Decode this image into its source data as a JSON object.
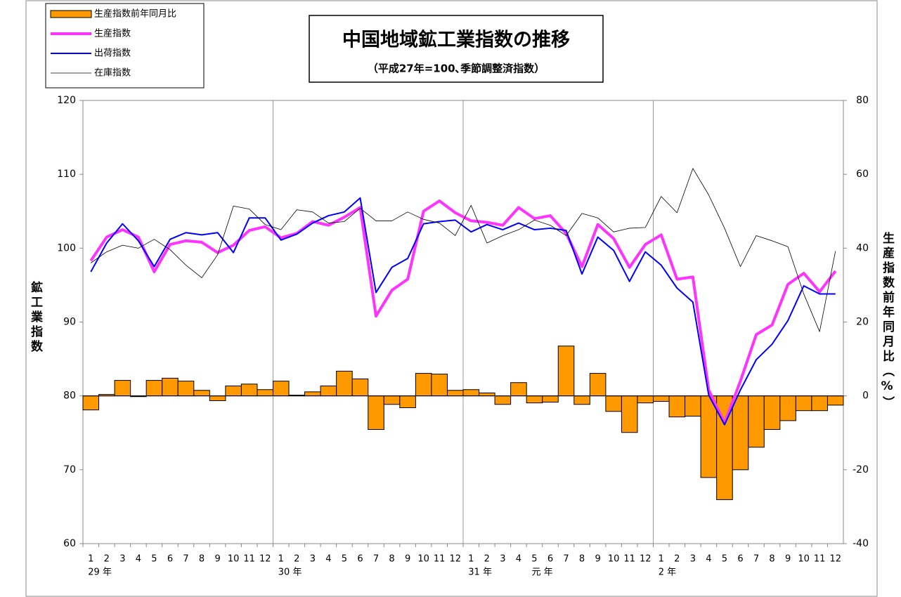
{
  "chart_data": {
    "type": "combo",
    "title": "中国地域鉱工業指数の推移",
    "subtitle": "（平成27年=100､季節調整済指数）",
    "y_label": "鉱工業指数",
    "y2_label": "生産指数前年同月比（%）",
    "categories": [
      "1",
      "2",
      "3",
      "4",
      "5",
      "6",
      "7",
      "8",
      "9",
      "10",
      "11",
      "12",
      "1",
      "2",
      "3",
      "4",
      "5",
      "6",
      "7",
      "8",
      "9",
      "10",
      "11",
      "12",
      "1",
      "2",
      "3",
      "4",
      "5",
      "6",
      "7",
      "8",
      "9",
      "10",
      "11",
      "12",
      "1",
      "2",
      "3",
      "4",
      "5",
      "6",
      "7",
      "8",
      "9",
      "10",
      "11",
      "12"
    ],
    "year_labels": [
      "29 年",
      null,
      null,
      null,
      null,
      null,
      null,
      null,
      null,
      null,
      null,
      null,
      "30 年",
      null,
      null,
      null,
      null,
      null,
      null,
      null,
      null,
      null,
      null,
      null,
      "31 年",
      null,
      null,
      null,
      "元 年",
      null,
      null,
      null,
      null,
      null,
      null,
      null,
      "2 年",
      null,
      null,
      null,
      null,
      null,
      null,
      null,
      null,
      null,
      null,
      null
    ],
    "ylim": [
      60,
      120
    ],
    "yticks": [
      60,
      70,
      80,
      90,
      100,
      110,
      120
    ],
    "y2lim": [
      -40,
      80
    ],
    "y2ticks": [
      -40,
      -20,
      0,
      20,
      40,
      60,
      80
    ],
    "series": [
      {
        "name": "生産指数前年同月比",
        "type": "bar",
        "axis": "y2",
        "color": "#ff9900",
        "values": [
          -3.8,
          0.4,
          4.2,
          -0.2,
          4.2,
          4.8,
          4.0,
          1.5,
          -1.3,
          2.7,
          3.2,
          1.7,
          4.0,
          0.2,
          1.1,
          2.7,
          6.7,
          4.6,
          -9.1,
          -2.3,
          -3.2,
          6.1,
          5.9,
          1.5,
          1.7,
          0.8,
          -2.3,
          3.6,
          -1.9,
          -1.7,
          13.5,
          -2.3,
          6.1,
          -4.2,
          -9.9,
          -1.9,
          -1.5,
          -5.7,
          -5.5,
          -22.1,
          -28.1,
          -20.0,
          -13.9,
          -9.1,
          -6.7,
          -4.0,
          -4.0,
          -2.5
        ]
      },
      {
        "name": "生産指数",
        "type": "line",
        "color": "#ff33ff",
        "width": 4,
        "values": [
          98.3,
          101.5,
          102.5,
          101.5,
          96.8,
          100.5,
          101.0,
          100.8,
          99.4,
          100.4,
          102.4,
          102.9,
          101.4,
          102.0,
          103.6,
          103.1,
          104.2,
          105.5,
          90.8,
          94.3,
          95.8,
          105.0,
          106.4,
          104.8,
          103.7,
          103.5,
          103.1,
          105.5,
          104.0,
          104.4,
          102.0,
          97.5,
          103.2,
          101.3,
          97.4,
          100.5,
          101.8,
          95.8,
          96.1,
          80.8,
          76.3,
          82.0,
          88.3,
          89.6,
          95.1,
          96.6,
          94.1,
          96.9
        ]
      },
      {
        "name": "出荷指数",
        "type": "line",
        "color": "#0000ff",
        "width": 2,
        "values": [
          96.8,
          100.7,
          103.3,
          101.0,
          97.5,
          101.2,
          102.1,
          101.8,
          102.1,
          99.4,
          104.1,
          104.1,
          101.1,
          101.9,
          103.4,
          104.4,
          104.9,
          106.8,
          94.0,
          97.4,
          98.6,
          103.3,
          103.6,
          103.8,
          102.2,
          103.2,
          102.5,
          103.4,
          102.5,
          102.7,
          102.4,
          96.5,
          101.5,
          99.7,
          95.5,
          99.5,
          97.7,
          94.6,
          92.7,
          80.1,
          76.1,
          80.8,
          84.9,
          87.0,
          90.2,
          94.9,
          93.8,
          93.8
        ]
      },
      {
        "name": "在庫指数",
        "type": "line",
        "color": "#000000",
        "width": 0.8,
        "values": [
          98.0,
          99.5,
          100.4,
          100.0,
          101.2,
          99.8,
          97.7,
          96.0,
          99.1,
          105.7,
          105.3,
          103.2,
          102.5,
          105.2,
          104.9,
          103.4,
          103.6,
          105.4,
          103.7,
          103.7,
          104.9,
          103.9,
          103.4,
          101.7,
          105.8,
          100.7,
          101.7,
          102.5,
          103.8,
          103.1,
          101.7,
          104.7,
          104.1,
          102.2,
          102.7,
          102.8,
          107.0,
          104.8,
          110.8,
          107.2,
          102.7,
          97.5,
          101.7,
          101.0,
          100.2,
          93.8,
          88.7,
          99.6
        ]
      }
    ]
  }
}
